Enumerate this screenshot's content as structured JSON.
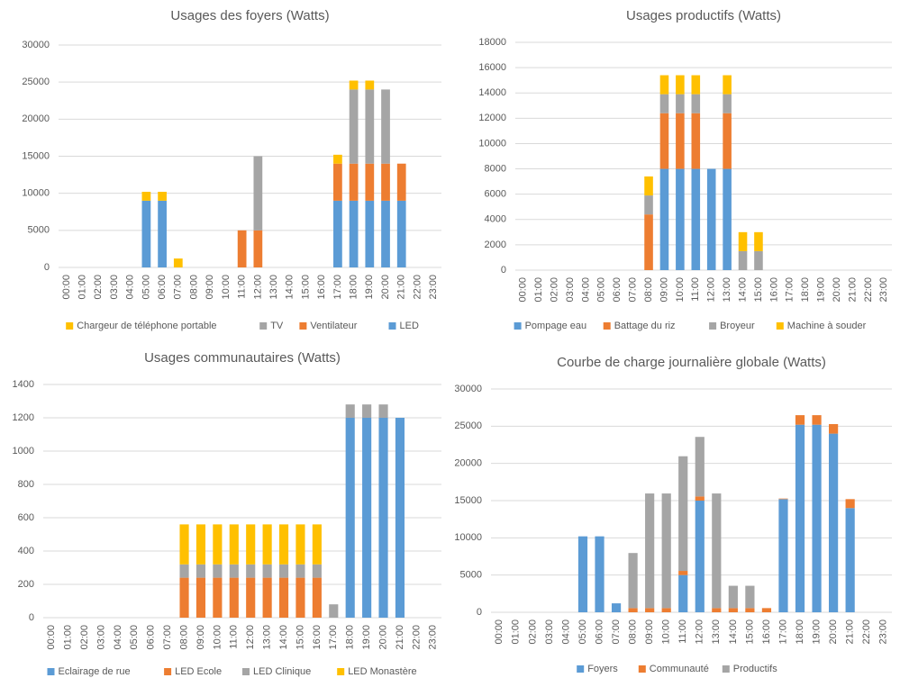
{
  "chart_data": [
    {
      "type": "bar",
      "stacked": true,
      "title": "Usages des foyers (Watts)",
      "categories": [
        "00:00",
        "01:00",
        "02:00",
        "03:00",
        "04:00",
        "05:00",
        "06:00",
        "07:00",
        "08:00",
        "09:00",
        "10:00",
        "11:00",
        "12:00",
        "13:00",
        "14:00",
        "15:00",
        "16:00",
        "17:00",
        "18:00",
        "19:00",
        "20:00",
        "21:00",
        "22:00",
        "23:00"
      ],
      "series": [
        {
          "name": "LED",
          "color": "#5b9bd5",
          "values": [
            0,
            0,
            0,
            0,
            0,
            9000,
            9000,
            0,
            0,
            0,
            0,
            0,
            0,
            0,
            0,
            0,
            0,
            9000,
            9000,
            9000,
            9000,
            9000,
            0,
            0
          ]
        },
        {
          "name": "Ventilateur",
          "color": "#ed7d31",
          "values": [
            0,
            0,
            0,
            0,
            0,
            0,
            0,
            0,
            0,
            0,
            0,
            5000,
            5000,
            0,
            0,
            0,
            0,
            5000,
            5000,
            5000,
            5000,
            5000,
            0,
            0
          ]
        },
        {
          "name": "TV",
          "color": "#a5a5a5",
          "values": [
            0,
            0,
            0,
            0,
            0,
            0,
            0,
            0,
            0,
            0,
            0,
            0,
            10000,
            0,
            0,
            0,
            0,
            0,
            10000,
            10000,
            10000,
            0,
            0,
            0
          ]
        },
        {
          "name": "Chargeur de téléphone portable",
          "color": "#ffc000",
          "values": [
            0,
            0,
            0,
            0,
            0,
            1200,
            1200,
            1200,
            0,
            0,
            0,
            0,
            0,
            0,
            0,
            0,
            0,
            1200,
            1200,
            1200,
            0,
            0,
            0,
            0
          ]
        }
      ],
      "legend_order": "reverse",
      "legend": "bottom",
      "grid": true,
      "ylim": [
        0,
        30000
      ],
      "yticks": [
        0,
        5000,
        10000,
        15000,
        20000,
        25000,
        30000
      ]
    },
    {
      "type": "bar",
      "stacked": true,
      "title": "Usages productifs (Watts)",
      "categories": [
        "00:00",
        "01:00",
        "02:00",
        "03:00",
        "04:00",
        "05:00",
        "06:00",
        "07:00",
        "08:00",
        "09:00",
        "10:00",
        "11:00",
        "12:00",
        "13:00",
        "14:00",
        "15:00",
        "16:00",
        "17:00",
        "18:00",
        "19:00",
        "20:00",
        "21:00",
        "22:00",
        "23:00"
      ],
      "series": [
        {
          "name": "Pompage eau",
          "color": "#5b9bd5",
          "values": [
            0,
            0,
            0,
            0,
            0,
            0,
            0,
            0,
            0,
            8000,
            8000,
            8000,
            8000,
            8000,
            0,
            0,
            0,
            0,
            0,
            0,
            0,
            0,
            0,
            0
          ]
        },
        {
          "name": "Battage du riz",
          "color": "#ed7d31",
          "values": [
            0,
            0,
            0,
            0,
            0,
            0,
            0,
            0,
            4400,
            4400,
            4400,
            4400,
            0,
            4400,
            0,
            0,
            0,
            0,
            0,
            0,
            0,
            0,
            0,
            0
          ]
        },
        {
          "name": "Broyeur",
          "color": "#a5a5a5",
          "values": [
            0,
            0,
            0,
            0,
            0,
            0,
            0,
            0,
            1500,
            1500,
            1500,
            1500,
            0,
            1500,
            1500,
            1500,
            0,
            0,
            0,
            0,
            0,
            0,
            0,
            0
          ]
        },
        {
          "name": "Machine à souder",
          "color": "#ffc000",
          "values": [
            0,
            0,
            0,
            0,
            0,
            0,
            0,
            0,
            1500,
            1500,
            1500,
            1500,
            0,
            1500,
            1500,
            1500,
            0,
            0,
            0,
            0,
            0,
            0,
            0,
            0
          ]
        }
      ],
      "legend": "bottom",
      "grid": true,
      "ylim": [
        0,
        18000
      ],
      "yticks": [
        0,
        2000,
        4000,
        6000,
        8000,
        10000,
        12000,
        14000,
        16000,
        18000
      ]
    },
    {
      "type": "bar",
      "stacked": true,
      "title": "Usages communautaires (Watts)",
      "categories": [
        "00:00",
        "01:00",
        "02:00",
        "03:00",
        "04:00",
        "05:00",
        "06:00",
        "07:00",
        "08:00",
        "09:00",
        "10:00",
        "11:00",
        "12:00",
        "13:00",
        "14:00",
        "15:00",
        "16:00",
        "17:00",
        "18:00",
        "19:00",
        "20:00",
        "21:00",
        "22:00",
        "23:00"
      ],
      "series": [
        {
          "name": "Eclairage de rue",
          "color": "#5b9bd5",
          "values": [
            0,
            0,
            0,
            0,
            0,
            0,
            0,
            0,
            0,
            0,
            0,
            0,
            0,
            0,
            0,
            0,
            0,
            0,
            1200,
            1200,
            1200,
            1200,
            0,
            0
          ]
        },
        {
          "name": "LED Ecole",
          "color": "#ed7d31",
          "values": [
            0,
            0,
            0,
            0,
            0,
            0,
            0,
            0,
            240,
            240,
            240,
            240,
            240,
            240,
            240,
            240,
            240,
            0,
            0,
            0,
            0,
            0,
            0,
            0
          ]
        },
        {
          "name": "LED Clinique",
          "color": "#a5a5a5",
          "values": [
            0,
            0,
            0,
            0,
            0,
            0,
            0,
            0,
            80,
            80,
            80,
            80,
            80,
            80,
            80,
            80,
            80,
            80,
            80,
            80,
            80,
            0,
            0,
            0
          ]
        },
        {
          "name": "LED Monastère",
          "color": "#ffc000",
          "values": [
            0,
            0,
            0,
            0,
            0,
            0,
            0,
            0,
            240,
            240,
            240,
            240,
            240,
            240,
            240,
            240,
            240,
            0,
            0,
            0,
            0,
            0,
            0,
            0
          ]
        }
      ],
      "legend": "bottom",
      "grid": true,
      "ylim": [
        0,
        1400
      ],
      "yticks": [
        0,
        200,
        400,
        600,
        800,
        1000,
        1200,
        1400
      ]
    },
    {
      "type": "bar",
      "stacked": true,
      "title": "Courbe de charge journalière globale (Watts)",
      "categories": [
        "00:00",
        "01:00",
        "02:00",
        "03:00",
        "04:00",
        "05:00",
        "06:00",
        "07:00",
        "08:00",
        "09:00",
        "10:00",
        "11:00",
        "12:00",
        "13:00",
        "14:00",
        "15:00",
        "16:00",
        "17:00",
        "18:00",
        "19:00",
        "20:00",
        "21:00",
        "22:00",
        "23:00"
      ],
      "series": [
        {
          "name": "Foyers",
          "color": "#5b9bd5",
          "values": [
            0,
            0,
            0,
            0,
            0,
            10200,
            10200,
            1200,
            0,
            0,
            0,
            5000,
            15000,
            0,
            0,
            0,
            0,
            15200,
            25200,
            25200,
            24000,
            14000,
            0,
            0
          ]
        },
        {
          "name": "Communauté",
          "color": "#ed7d31",
          "values": [
            0,
            0,
            0,
            0,
            0,
            0,
            0,
            0,
            560,
            560,
            560,
            560,
            560,
            560,
            560,
            560,
            560,
            80,
            1280,
            1280,
            1280,
            1200,
            0,
            0
          ]
        },
        {
          "name": "Productifs",
          "color": "#a5a5a5",
          "values": [
            0,
            0,
            0,
            0,
            0,
            0,
            0,
            0,
            7400,
            15400,
            15400,
            15400,
            8000,
            15400,
            3000,
            3000,
            0,
            0,
            0,
            0,
            0,
            0,
            0,
            0
          ]
        }
      ],
      "legend": "bottom",
      "grid": true,
      "ylim": [
        0,
        30000
      ],
      "yticks": [
        0,
        5000,
        10000,
        15000,
        20000,
        25000,
        30000
      ]
    }
  ]
}
